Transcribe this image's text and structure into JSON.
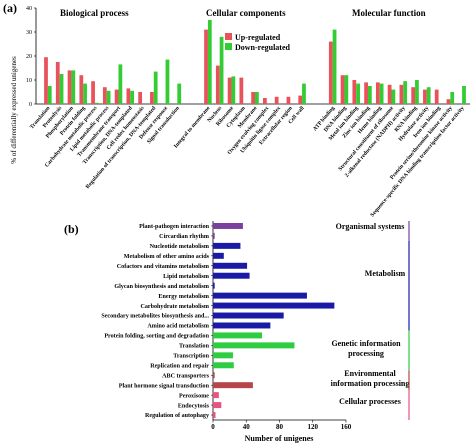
{
  "panel_a": {
    "label": "(a)",
    "section_titles": [
      "Biological process",
      "Cellular components",
      "Molecular function"
    ]
  },
  "panel_b": {
    "label": "(b)",
    "groups": [
      "Organismal systems",
      "Metabolism",
      "Genetic information processing",
      "Environmental information processing",
      "Cellular processes"
    ]
  },
  "colors": {
    "up": "#e8535b",
    "down": "#33cc33",
    "organismal": "#7b3f9e",
    "metabolism": "#1a1aa6",
    "genetic": "#2ecc40",
    "environmental": "#b5474b",
    "cellular": "#e75480"
  },
  "chart_data": [
    {
      "type": "bar",
      "title": "",
      "ylabel": "% of differentially expressed unigenes",
      "ylim": [
        0,
        40
      ],
      "yticks": [
        0,
        10,
        20,
        30,
        40
      ],
      "legend": "top-center",
      "categories": [
        "Translation",
        "Proteolysis",
        "Phosphorylation",
        "Protein folding",
        "Carbohydrate metabolic process",
        "Lipid metabolic process",
        "Transmembrane transport",
        "Transcription, DNA-templated",
        "Cell redox homeostasis",
        "Regulation of transcription, DNA-templated",
        "Defense response",
        "Signal transduction",
        "Integral to membrane",
        "Nucleus",
        "Ribosome",
        "Cytoplasm",
        "Membrane",
        "Oxygen evolving complex",
        "Ubiquitin ligase complex",
        "Extracellular region",
        "Cell wall",
        "ATP binding",
        "DNA binding",
        "Metal ion binding",
        "Zinc ion binding",
        "Heme binding",
        "Structural constituent of ribosome",
        "2-alkenal reductase (NADPH) activity",
        "RNA binding",
        "Hydrolase activity",
        "Iron ion binding",
        "Protein serine/threonine kinase activity",
        "Sequence-specific DNA binding transcription factor activity"
      ],
      "series": [
        {
          "name": "Up-regulated",
          "values": [
            19.5,
            17.5,
            14,
            12,
            9.5,
            7,
            6,
            6.5,
            5,
            5,
            0,
            0,
            31,
            16,
            11,
            11,
            5,
            2.5,
            3,
            3,
            3.5,
            26,
            12,
            10,
            9,
            9,
            8,
            8,
            7,
            6,
            6,
            2,
            0
          ]
        },
        {
          "name": "Down-regulated",
          "values": [
            7.5,
            12.5,
            14,
            8.5,
            0.5,
            5.5,
            16.5,
            5.5,
            0,
            13.5,
            18.5,
            8.5,
            35,
            28,
            11.5,
            0,
            5,
            0,
            0,
            0,
            8.5,
            31,
            12,
            8.5,
            7.5,
            8.5,
            6,
            9.5,
            10,
            7,
            0,
            5,
            7.5
          ]
        }
      ],
      "groups": [
        {
          "name": "Biological process",
          "range": [
            0,
            11
          ]
        },
        {
          "name": "Cellular components",
          "range": [
            12,
            20
          ]
        },
        {
          "name": "Molecular function",
          "range": [
            21,
            32
          ]
        }
      ]
    },
    {
      "type": "bar",
      "orientation": "horizontal",
      "title": "",
      "xlabel": "Number of unigenes",
      "xlim": [
        0,
        160
      ],
      "xticks": [
        0,
        40,
        80,
        120,
        160
      ],
      "categories": [
        "Plant-pathogen interaction",
        "Circardian rhythm",
        "Nucleotide metabolism",
        "Metabolism of other amino acids",
        "Cofactors and vitamins metabolism",
        "Lipid metabolism",
        "Glycan biosynthesis and metabolism",
        "Energy metabolism",
        "Carbohydrate metabolism",
        "Secondary metabolites biosynthesis and...",
        "Amino acid metabolism",
        "Protein folding, sorting and degradation",
        "Translation",
        "Transcription",
        "Replication and repair",
        "ABC transporters",
        "Plant hormone signal transduction",
        "Peroxisome",
        "Endocytosis",
        "Regulation of autophagy"
      ],
      "values": [
        36,
        2,
        33,
        13,
        41,
        44,
        2,
        113,
        146,
        85,
        69,
        59,
        98,
        24,
        25,
        2,
        48,
        7,
        10,
        3
      ],
      "group_of": [
        0,
        0,
        1,
        1,
        1,
        1,
        1,
        1,
        1,
        1,
        1,
        2,
        2,
        2,
        2,
        3,
        3,
        4,
        4,
        4
      ]
    }
  ]
}
